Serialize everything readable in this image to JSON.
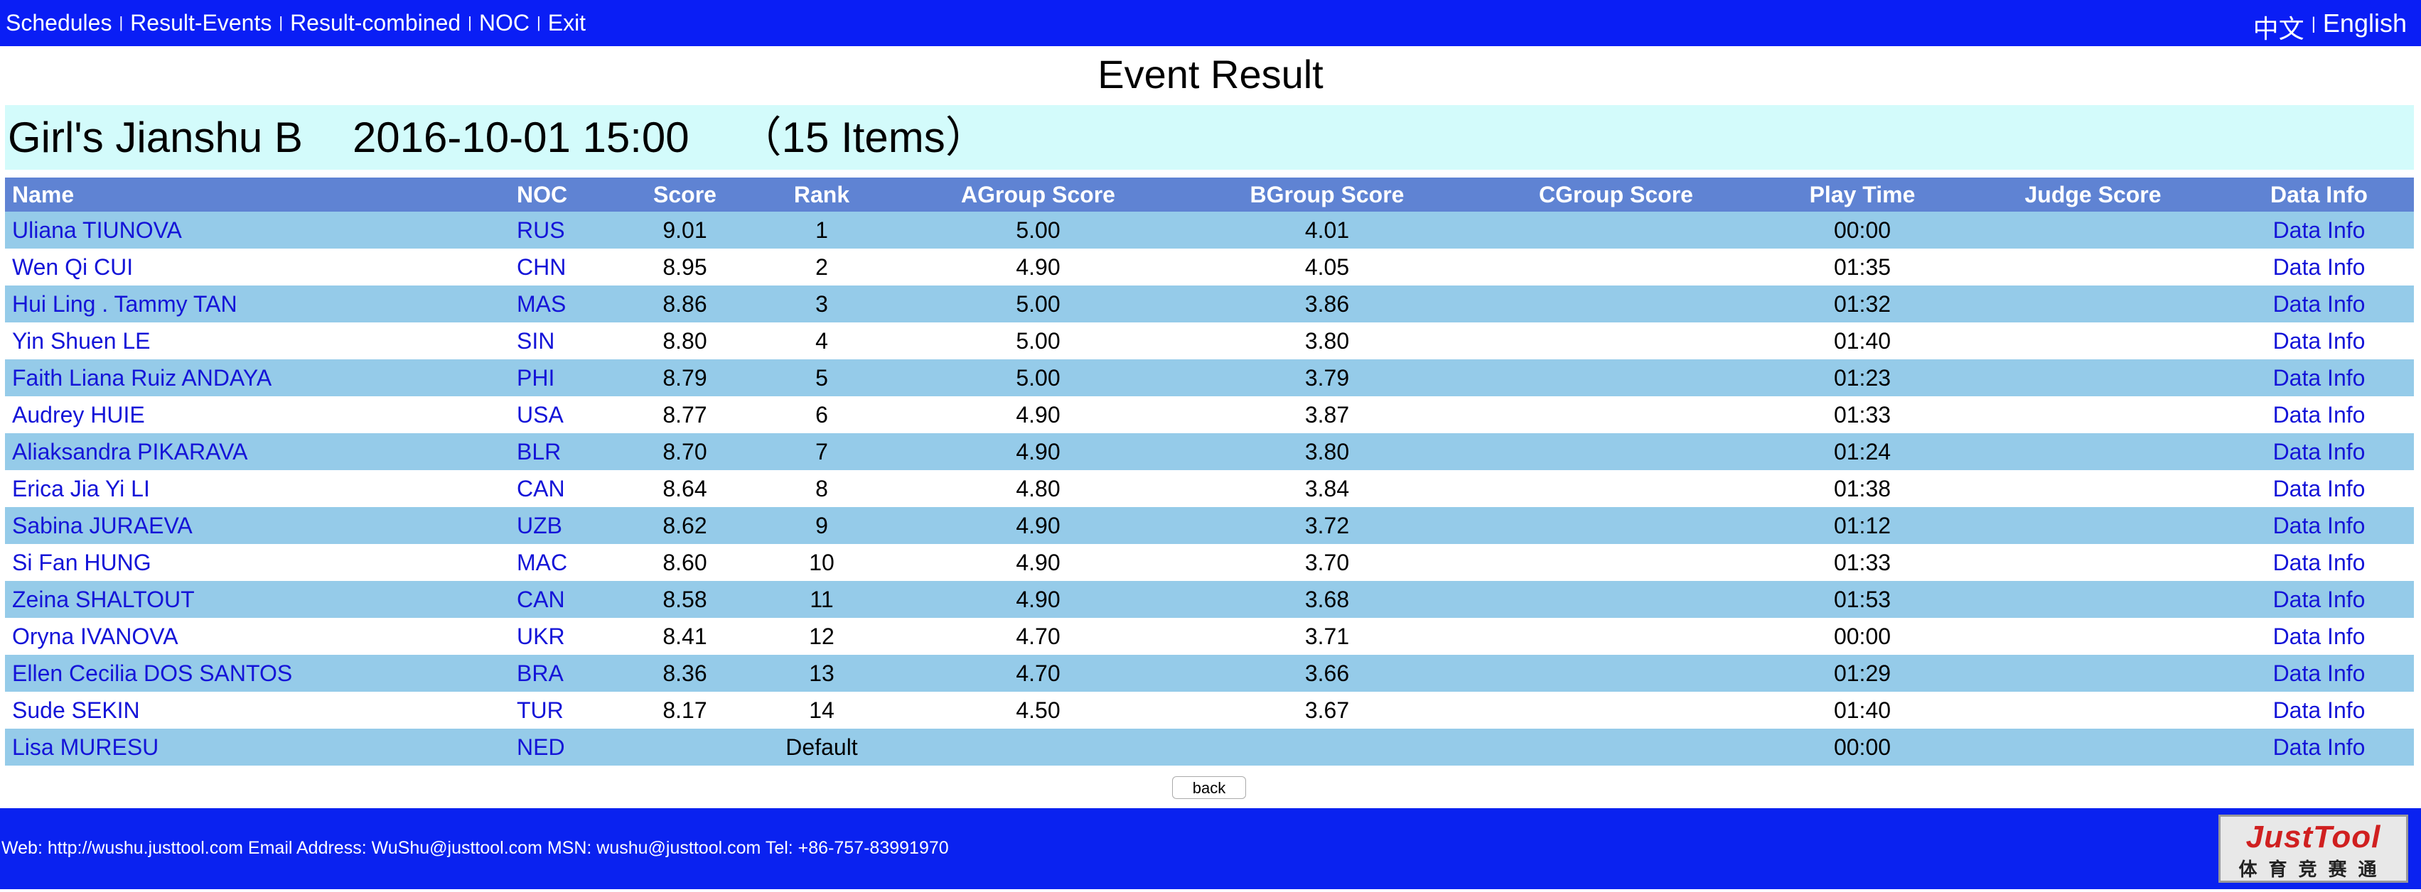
{
  "nav": {
    "items": [
      "Schedules",
      "Result-Events",
      "Result-combined",
      "NOC",
      "Exit"
    ],
    "languages": [
      "中文",
      "English"
    ]
  },
  "header": {
    "title": "Event Result",
    "event": "Girl's Jianshu B",
    "datetime": "2016-10-01 15:00",
    "items": "（15 Items）"
  },
  "table": {
    "columns": [
      "Name",
      "NOC",
      "Score",
      "Rank",
      "AGroup Score",
      "BGroup Score",
      "CGroup Score",
      "Play Time",
      "Judge Score",
      "Data Info"
    ],
    "rows": [
      {
        "name": "Uliana TIUNOVA",
        "noc": "RUS",
        "score": "9.01",
        "rank": "1",
        "agroup": "5.00",
        "bgroup": "4.01",
        "time": "00:00",
        "info": "Data Info"
      },
      {
        "name": "Wen Qi CUI",
        "noc": "CHN",
        "score": "8.95",
        "rank": "2",
        "agroup": "4.90",
        "bgroup": "4.05",
        "time": "01:35",
        "info": "Data Info"
      },
      {
        "name": "Hui Ling . Tammy TAN",
        "noc": "MAS",
        "score": "8.86",
        "rank": "3",
        "agroup": "5.00",
        "bgroup": "3.86",
        "time": "01:32",
        "info": "Data Info"
      },
      {
        "name": "Yin Shuen LE",
        "noc": "SIN",
        "score": "8.80",
        "rank": "4",
        "agroup": "5.00",
        "bgroup": "3.80",
        "time": "01:40",
        "info": "Data Info"
      },
      {
        "name": "Faith Liana Ruiz ANDAYA",
        "noc": "PHI",
        "score": "8.79",
        "rank": "5",
        "agroup": "5.00",
        "bgroup": "3.79",
        "time": "01:23",
        "info": "Data Info"
      },
      {
        "name": "Audrey HUIE",
        "noc": "USA",
        "score": "8.77",
        "rank": "6",
        "agroup": "4.90",
        "bgroup": "3.87",
        "time": "01:33",
        "info": "Data Info"
      },
      {
        "name": "Aliaksandra PIKARAVA",
        "noc": "BLR",
        "score": "8.70",
        "rank": "7",
        "agroup": "4.90",
        "bgroup": "3.80",
        "time": "01:24",
        "info": "Data Info"
      },
      {
        "name": "Erica Jia Yi LI",
        "noc": "CAN",
        "score": "8.64",
        "rank": "8",
        "agroup": "4.80",
        "bgroup": "3.84",
        "time": "01:38",
        "info": "Data Info"
      },
      {
        "name": "Sabina JURAEVA",
        "noc": "UZB",
        "score": "8.62",
        "rank": "9",
        "agroup": "4.90",
        "bgroup": "3.72",
        "time": "01:12",
        "info": "Data Info"
      },
      {
        "name": "Si Fan HUNG",
        "noc": "MAC",
        "score": "8.60",
        "rank": "10",
        "agroup": "4.90",
        "bgroup": "3.70",
        "time": "01:33",
        "info": "Data Info"
      },
      {
        "name": "Zeina SHALTOUT",
        "noc": "CAN",
        "score": "8.58",
        "rank": "11",
        "agroup": "4.90",
        "bgroup": "3.68",
        "time": "01:53",
        "info": "Data Info"
      },
      {
        "name": "Oryna IVANOVA",
        "noc": "UKR",
        "score": "8.41",
        "rank": "12",
        "agroup": "4.70",
        "bgroup": "3.71",
        "time": "00:00",
        "info": "Data Info"
      },
      {
        "name": "Ellen Cecilia DOS SANTOS",
        "noc": "BRA",
        "score": "8.36",
        "rank": "13",
        "agroup": "4.70",
        "bgroup": "3.66",
        "time": "01:29",
        "info": "Data Info"
      },
      {
        "name": "Sude SEKIN",
        "noc": "TUR",
        "score": "8.17",
        "rank": "14",
        "agroup": "4.50",
        "bgroup": "3.67",
        "time": "01:40",
        "info": "Data Info"
      },
      {
        "name": "Lisa MURESU",
        "noc": "NED",
        "rank": "Default",
        "time": "00:00",
        "info": "Data Info"
      }
    ]
  },
  "back": "back",
  "footer": {
    "contact": "Web: http://wushu.justtool.com Email Address: WuShu@justtool.com MSN: wushu@justtool.com Tel: +86-757-83991970",
    "logo": "JustTool",
    "logo_sub": "体育竞赛通"
  }
}
